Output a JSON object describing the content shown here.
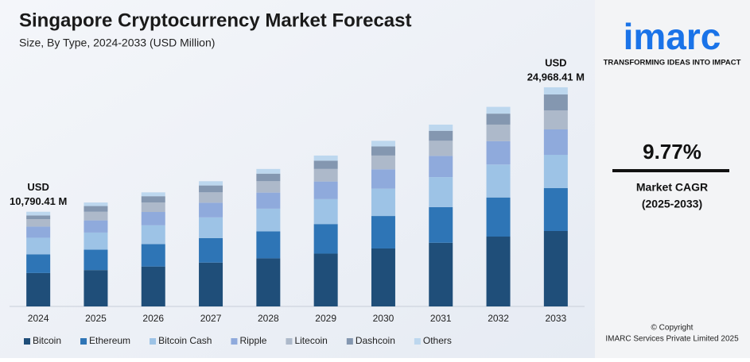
{
  "chart_data": {
    "type": "stacked_bar",
    "title": "Singapore Cryptocurrency Market Forecast",
    "subtitle": "Size, By Type, 2024-2033 (USD Million)",
    "categories": [
      "2024",
      "2025",
      "2026",
      "2027",
      "2028",
      "2029",
      "2030",
      "2031",
      "2032",
      "2033"
    ],
    "series": [
      {
        "name": "Bitcoin",
        "color": "#1f4e79",
        "values": [
          3809,
          4145,
          4550,
          4995,
          5482,
          6018,
          6606,
          7252,
          7960,
          8594
        ]
      },
      {
        "name": "Ethereum",
        "color": "#2e75b6",
        "values": [
          2116,
          2321,
          2548,
          2797,
          3070,
          3370,
          3700,
          4061,
          4458,
          4885
        ]
      },
      {
        "name": "Bitcoin Cash",
        "color": "#9dc3e6",
        "values": [
          1904,
          1954,
          2145,
          2355,
          2585,
          2837,
          3114,
          3419,
          3753,
          3799
        ]
      },
      {
        "name": "Ripple",
        "color": "#8faadc",
        "values": [
          1270,
          1386,
          1521,
          1670,
          1833,
          2012,
          2208,
          2424,
          2661,
          2895
        ]
      },
      {
        "name": "Litecoin",
        "color": "#adb9ca",
        "values": [
          846,
          983,
          1079,
          1184,
          1300,
          1427,
          1567,
          1720,
          1888,
          2171
        ]
      },
      {
        "name": "Dashcoin",
        "color": "#8497b0",
        "values": [
          423,
          651,
          715,
          785,
          862,
          946,
          1038,
          1139,
          1251,
          1809
        ]
      },
      {
        "name": "Others",
        "color": "#bdd7ee",
        "values": [
          422,
          403,
          442,
          484,
          532,
          585,
          642,
          704,
          772,
          815
        ]
      }
    ],
    "annotations": [
      {
        "category": 0,
        "lines": [
          "USD",
          "10,790.41 M"
        ]
      },
      {
        "category": 9,
        "lines": [
          "USD",
          "24,968.41 M"
        ]
      }
    ],
    "legend": "bottom"
  },
  "sidebar": {
    "logo": "imarc",
    "tagline": "TRANSFORMING IDEAS INTO IMPACT",
    "cagr": "9.77%",
    "cagr_label": "Market CAGR",
    "cagr_period": "(2025-2033)",
    "copyright": "© Copyright",
    "company": "IMARC Services Private Limited 2025"
  }
}
